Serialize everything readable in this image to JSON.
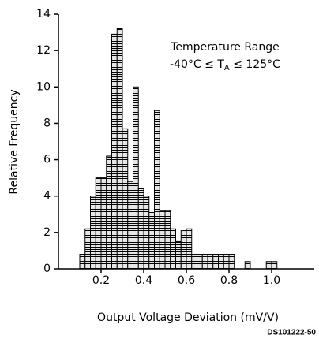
{
  "chart_data": {
    "type": "histogram",
    "x_label": "Output Voltage Deviation (mV/V)",
    "y_label": "Relative Frequency",
    "annotation": {
      "line1": "Temperature Range",
      "line2": [
        "-40°C ≤ T",
        "A",
        " ≤ 125°C"
      ]
    },
    "footer": "DS101222-50",
    "color": "#000000",
    "bins": [
      0.1,
      0.125,
      0.15,
      0.175,
      0.2,
      0.225,
      0.25,
      0.275,
      0.3,
      0.325,
      0.35,
      0.375,
      0.4,
      0.425,
      0.45,
      0.475,
      0.5,
      0.525,
      0.55,
      0.575,
      0.6,
      0.625,
      0.65,
      0.675,
      0.7,
      0.725,
      0.75,
      0.775,
      0.8,
      0.825,
      0.85,
      0.875,
      0.9,
      0.925,
      0.95,
      0.975,
      1.0,
      1.025
    ],
    "counts": [
      0.8,
      2.2,
      4.0,
      5.0,
      5.0,
      6.2,
      12.9,
      13.2,
      7.7,
      4.8,
      10.0,
      4.4,
      4.0,
      3.1,
      8.7,
      3.2,
      3.2,
      2.2,
      1.5,
      2.1,
      2.2,
      0.8,
      0.8,
      0.8,
      0.8,
      0.8,
      0.8,
      0.8,
      0.8,
      0,
      0,
      0.4,
      0,
      0,
      0,
      0.4,
      0.4
    ],
    "xlim": [
      0,
      1.2
    ],
    "xticks": [
      0.2,
      0.4,
      0.6,
      0.8,
      {
        "value": 1,
        "label": "1.0"
      }
    ],
    "ylim": [
      0,
      14
    ],
    "yticks": [
      0,
      2,
      4,
      6,
      8,
      10,
      12,
      14
    ]
  }
}
